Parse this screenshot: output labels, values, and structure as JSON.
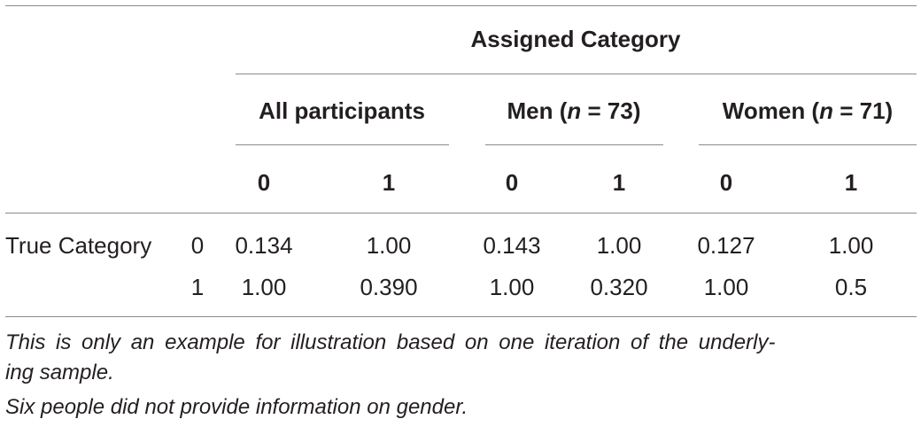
{
  "table": {
    "assigned_header": "Assigned Category",
    "groups": [
      {
        "label": "All participants",
        "n_prefix": "",
        "n_value": ""
      },
      {
        "label": "Men (",
        "n_prefix": "n",
        "n_value": " = 73)"
      },
      {
        "label": "Women (",
        "n_prefix": "n",
        "n_value": " = 71)"
      }
    ],
    "subheaders": [
      "0",
      "1",
      "0",
      "1",
      "0",
      "1"
    ],
    "row_header": "True Category",
    "rows": [
      {
        "label": "0",
        "cells": [
          "0.134",
          "1.00",
          "0.143",
          "1.00",
          "0.127",
          "1.00"
        ]
      },
      {
        "label": "1",
        "cells": [
          "1.00",
          "0.390",
          "1.00",
          "0.320",
          "1.00",
          "0.5"
        ]
      }
    ]
  },
  "notes": {
    "line1": "This is only an example for illustration based on one iteration of the underly-",
    "line2": "ing sample.",
    "line3": "Six people did not provide information on gender."
  }
}
